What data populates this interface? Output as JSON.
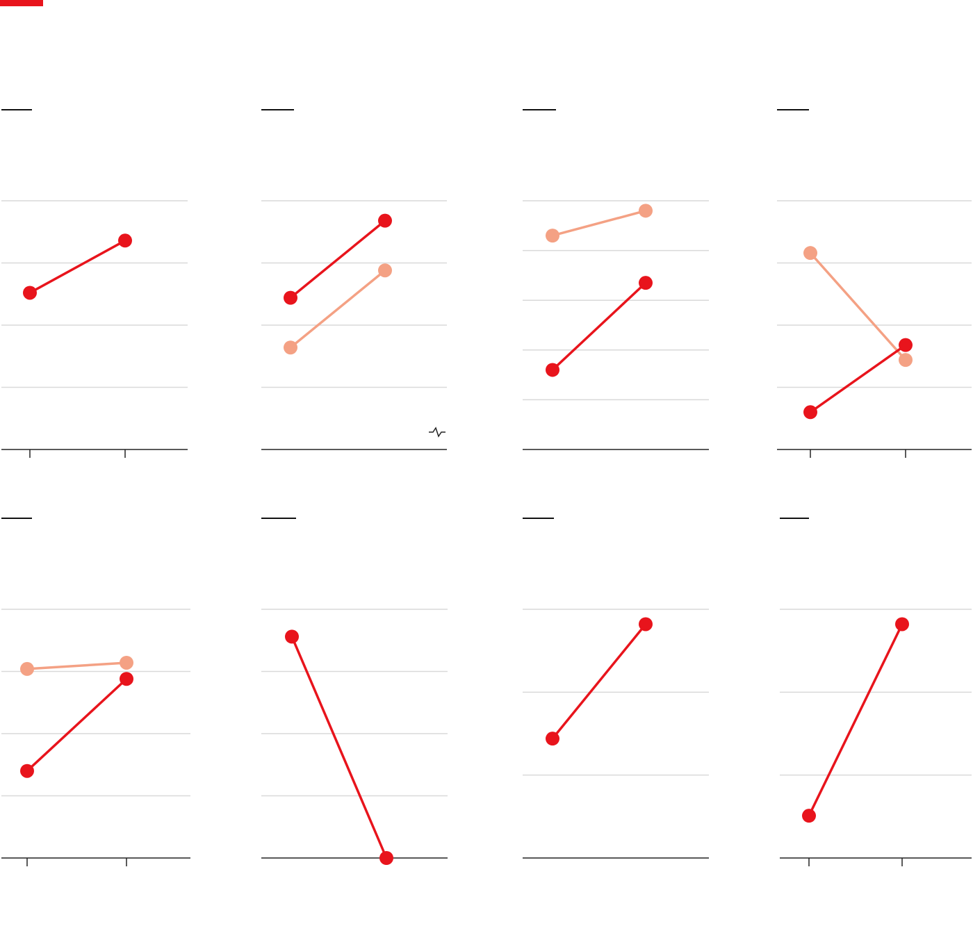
{
  "colors": {
    "primary": "#e8141c",
    "secondary": "#f4a184",
    "grid": "#d9d9d9",
    "axis": "#222222",
    "brand": "#e8141c"
  },
  "chart_data": [
    {
      "type": "line",
      "grid_lines": 4,
      "x_ticks": true,
      "axis_break": false,
      "series": [
        {
          "style": "primary",
          "values": [
            0.63,
            0.84
          ]
        }
      ]
    },
    {
      "type": "line",
      "grid_lines": 4,
      "x_ticks": false,
      "axis_break": true,
      "series": [
        {
          "style": "primary",
          "values": [
            0.61,
            0.92
          ]
        },
        {
          "style": "secondary",
          "values": [
            0.41,
            0.72
          ]
        }
      ]
    },
    {
      "type": "line",
      "grid_lines": 5,
      "x_ticks": false,
      "axis_break": false,
      "series": [
        {
          "style": "primary",
          "values": [
            0.32,
            0.67
          ]
        },
        {
          "style": "secondary",
          "values": [
            0.86,
            0.96
          ]
        }
      ]
    },
    {
      "type": "line",
      "grid_lines": 4,
      "x_ticks": true,
      "axis_break": false,
      "series": [
        {
          "style": "primary",
          "values": [
            0.15,
            0.42
          ]
        },
        {
          "style": "secondary",
          "values": [
            0.79,
            0.36
          ]
        }
      ]
    },
    {
      "type": "line",
      "grid_lines": 4,
      "x_ticks": true,
      "axis_break": false,
      "series": [
        {
          "style": "primary",
          "values": [
            0.35,
            0.72
          ]
        },
        {
          "style": "secondary",
          "values": [
            0.76,
            0.785
          ]
        }
      ]
    },
    {
      "type": "line",
      "grid_lines": 4,
      "x_ticks": false,
      "axis_break": false,
      "series": [
        {
          "style": "primary",
          "values": [
            0.89,
            0.0
          ]
        }
      ]
    },
    {
      "type": "line",
      "grid_lines": 3,
      "x_ticks": false,
      "axis_break": false,
      "series": [
        {
          "style": "primary",
          "values": [
            0.48,
            0.94
          ]
        }
      ]
    },
    {
      "type": "line",
      "grid_lines": 3,
      "x_ticks": true,
      "axis_break": false,
      "series": [
        {
          "style": "primary",
          "values": [
            0.17,
            0.94
          ]
        }
      ]
    }
  ]
}
